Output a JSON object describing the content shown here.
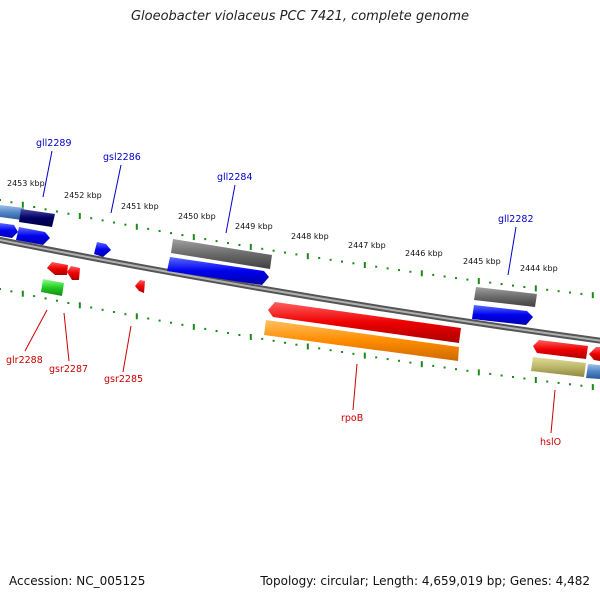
{
  "title": "Gloeobacter violaceus PCC 7421, complete genome",
  "footer": {
    "accession": "Accession: NC_005125",
    "summary": "Topology: circular; Length: 4,659,019 bp; Genes: 4,482"
  },
  "colors": {
    "label_upper": "#0000cc",
    "label_lower": "#cc0000",
    "tick": "#1a8a1a",
    "axis": "#808080"
  },
  "kbp_labels": [
    "2453 kbp",
    "2452 kbp",
    "2451 kbp",
    "2450 kbp",
    "2449 kbp",
    "2448 kbp",
    "2447 kbp",
    "2446 kbp",
    "2445 kbp",
    "2444 kbp"
  ],
  "genes_upper": [
    {
      "label": "gll2289",
      "color": "#0000cc"
    },
    {
      "label": "gsl2286",
      "color": "#0000cc"
    },
    {
      "label": "gll2284",
      "color": "#0000cc"
    },
    {
      "label": "gll2282",
      "color": "#0000cc"
    }
  ],
  "genes_lower": [
    {
      "label": "glr2288",
      "color": "#cc0000"
    },
    {
      "label": "gsr2287",
      "color": "#cc0000"
    },
    {
      "label": "gsr2285",
      "color": "#cc0000"
    },
    {
      "label": "rpoB",
      "color": "#cc0000"
    },
    {
      "label": "hslO",
      "color": "#cc0000"
    }
  ]
}
